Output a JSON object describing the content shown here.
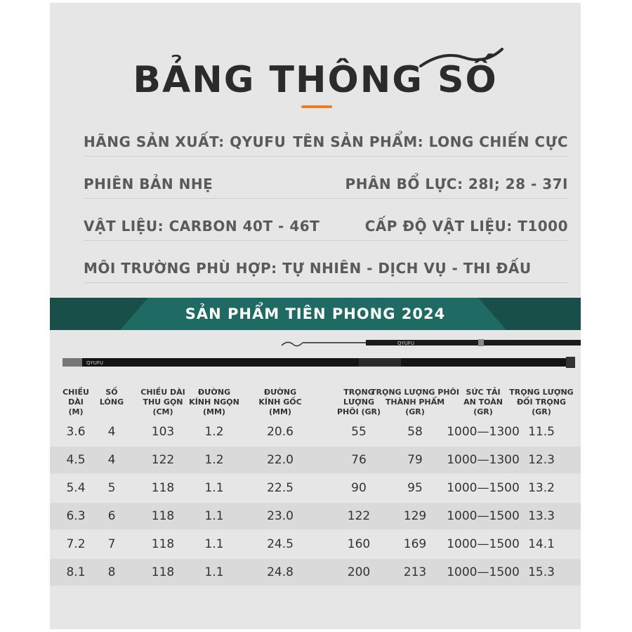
{
  "title": "BẢNG THÔNG SỐ",
  "specs": {
    "manufacturer": "HÃNG SẢN XUẤT: QYUFU",
    "product_name": "TÊN SẢN PHẨM: LONG CHIẾN CỰC",
    "version": "PHIÊN BẢN NHẸ",
    "force_distribution": "PHÂN BỔ LỰC: 28I; 28 - 37I",
    "material": "VẬT LIỆU: CARBON 40T - 46T",
    "material_grade": "CẤP ĐỘ VẬT LIỆU: T1000",
    "environment": "MÔI TRƯỜNG PHÙ HỢP: TỰ NHIÊN - DỊCH VỤ - THI ĐẤU"
  },
  "banner": "SẢN PHẨM TIÊN PHONG 2024",
  "rod_brand": "QYUFU",
  "colors": {
    "panel": "#e6e6e6",
    "banner": "#1f6b63",
    "accent": "#f07d22",
    "text": "#5a5a5a"
  },
  "table": {
    "headers": [
      [
        "CHIỀU",
        "DÀI",
        "(M)"
      ],
      [
        "SỐ",
        "LÓNG"
      ],
      [
        "CHIỀU DÀI",
        "THU GỌN",
        "(CM)"
      ],
      [
        "ĐƯỜNG",
        "KÍNH NGỌN",
        "(MM)"
      ],
      [
        "ĐƯỜNG",
        "KÍNH GỐC",
        "(MM)"
      ],
      [
        "TRỌNG",
        "LƯỢNG",
        "PHÔI (GR)"
      ],
      [
        "TRỌNG LƯỢNG PHÔI",
        "THÀNH PHẨM",
        "(GR)"
      ],
      [
        "SỨC TẢI",
        "AN TOÀN",
        "(GR)"
      ],
      [
        "TRỌNG LƯỢNG",
        "ĐỐI TRỌNG",
        "(GR)"
      ]
    ],
    "rows": [
      [
        "3.6",
        "4",
        "103",
        "1.2",
        "20.6",
        "55",
        "58",
        "1000—1300",
        "11.5"
      ],
      [
        "4.5",
        "4",
        "122",
        "1.2",
        "22.0",
        "76",
        "79",
        "1000—1300",
        "12.3"
      ],
      [
        "5.4",
        "5",
        "118",
        "1.1",
        "22.5",
        "90",
        "95",
        "1000—1500",
        "13.2"
      ],
      [
        "6.3",
        "6",
        "118",
        "1.1",
        "23.0",
        "122",
        "129",
        "1000—1500",
        "13.3"
      ],
      [
        "7.2",
        "7",
        "118",
        "1.1",
        "24.5",
        "160",
        "169",
        "1000—1500",
        "14.1"
      ],
      [
        "8.1",
        "8",
        "118",
        "1.1",
        "24.8",
        "200",
        "213",
        "1000—1500",
        "15.3"
      ]
    ]
  }
}
